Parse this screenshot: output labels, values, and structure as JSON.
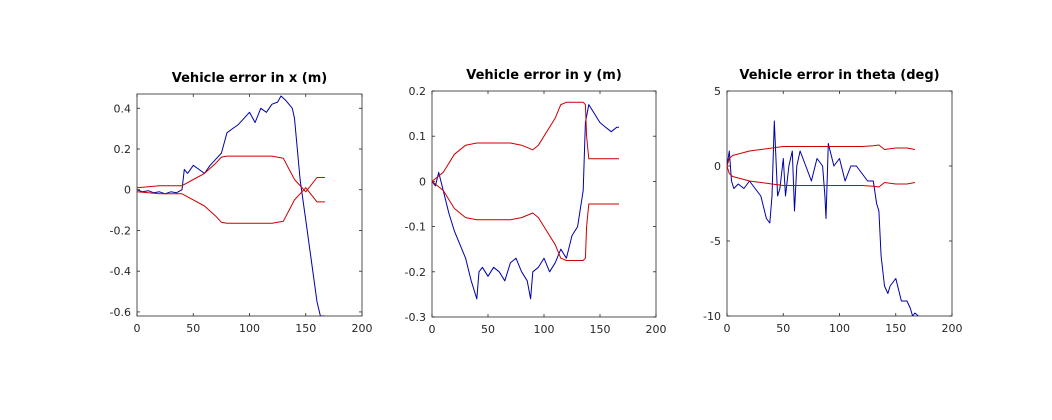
{
  "chart_data": [
    {
      "type": "line",
      "title": "Vehicle error in x (m)",
      "xlabel": "",
      "ylabel": "",
      "xlim": [
        0,
        200
      ],
      "ylim": [
        -0.62,
        0.47
      ],
      "xticks": [
        0,
        50,
        100,
        150,
        200
      ],
      "yticks": [
        -0.6,
        -0.4,
        -0.2,
        0,
        0.2,
        0.4
      ],
      "xtick_labels": [
        "0",
        "50",
        "100",
        "150",
        "200"
      ],
      "ytick_labels": [
        "-0.6",
        "-0.4",
        "-0.2",
        "0",
        "0.2",
        "0.4"
      ],
      "grid": false,
      "series": [
        {
          "color": "#0000aa",
          "x": [
            0,
            5,
            10,
            15,
            20,
            25,
            30,
            35,
            40,
            42,
            45,
            50,
            55,
            60,
            65,
            70,
            75,
            80,
            85,
            90,
            95,
            100,
            105,
            110,
            115,
            120,
            125,
            128,
            130,
            132,
            135,
            138,
            140,
            145,
            150,
            155,
            160,
            163,
            167
          ],
          "y": [
            0,
            -0.01,
            -0.005,
            -0.015,
            -0.01,
            -0.02,
            -0.01,
            -0.015,
            0,
            0.1,
            0.08,
            0.12,
            0.1,
            0.08,
            0.12,
            0.15,
            0.18,
            0.28,
            0.3,
            0.32,
            0.35,
            0.38,
            0.33,
            0.4,
            0.38,
            0.42,
            0.43,
            0.46,
            0.45,
            0.44,
            0.42,
            0.4,
            0.35,
            0.05,
            -0.15,
            -0.35,
            -0.55,
            -0.62,
            -0.62
          ]
        },
        {
          "color": "#cc0000",
          "x": [
            0,
            20,
            40,
            50,
            60,
            70,
            75,
            80,
            100,
            120,
            130,
            140,
            150,
            160,
            167
          ],
          "y": [
            0.01,
            0.02,
            0.02,
            0.05,
            0.08,
            0.13,
            0.16,
            0.165,
            0.165,
            0.165,
            0.155,
            0.05,
            -0.01,
            0.06,
            0.06
          ]
        },
        {
          "color": "#cc0000",
          "x": [
            0,
            20,
            40,
            50,
            60,
            70,
            75,
            80,
            100,
            120,
            130,
            140,
            150,
            160,
            167
          ],
          "y": [
            -0.01,
            -0.02,
            -0.02,
            -0.05,
            -0.08,
            -0.13,
            -0.16,
            -0.165,
            -0.165,
            -0.165,
            -0.155,
            -0.05,
            0.01,
            -0.06,
            -0.06
          ]
        }
      ]
    },
    {
      "type": "line",
      "title": "Vehicle error in y (m)",
      "xlabel": "",
      "ylabel": "",
      "xlim": [
        0,
        200
      ],
      "ylim": [
        -0.3,
        0.2
      ],
      "xticks": [
        0,
        50,
        100,
        150,
        200
      ],
      "yticks": [
        -0.3,
        -0.2,
        -0.1,
        0,
        0.1,
        0.2
      ],
      "xtick_labels": [
        "0",
        "50",
        "100",
        "150",
        "200"
      ],
      "ytick_labels": [
        "-0.3",
        "-0.2",
        "-0.1",
        "0",
        "0.1",
        "0.2"
      ],
      "grid": false,
      "series": [
        {
          "color": "#0000aa",
          "x": [
            0,
            3,
            6,
            10,
            15,
            20,
            25,
            30,
            35,
            40,
            42,
            45,
            50,
            55,
            60,
            65,
            70,
            75,
            80,
            85,
            88,
            90,
            95,
            100,
            105,
            110,
            115,
            120,
            125,
            130,
            135,
            137,
            140,
            145,
            150,
            155,
            160,
            165,
            167
          ],
          "y": [
            0,
            -0.01,
            0.02,
            -0.02,
            -0.07,
            -0.11,
            -0.14,
            -0.17,
            -0.22,
            -0.26,
            -0.2,
            -0.19,
            -0.21,
            -0.19,
            -0.2,
            -0.22,
            -0.18,
            -0.17,
            -0.2,
            -0.22,
            -0.26,
            -0.2,
            -0.19,
            -0.17,
            -0.2,
            -0.18,
            -0.15,
            -0.17,
            -0.12,
            -0.1,
            -0.02,
            0.13,
            0.17,
            0.15,
            0.13,
            0.12,
            0.11,
            0.12,
            0.12
          ]
        },
        {
          "color": "#cc0000",
          "x": [
            0,
            5,
            10,
            20,
            30,
            40,
            50,
            60,
            70,
            80,
            90,
            95,
            100,
            110,
            115,
            120,
            130,
            135,
            137,
            138,
            140,
            150,
            167
          ],
          "y": [
            0,
            0.01,
            0.02,
            0.06,
            0.08,
            0.085,
            0.085,
            0.085,
            0.085,
            0.08,
            0.07,
            0.08,
            0.1,
            0.14,
            0.17,
            0.175,
            0.175,
            0.175,
            0.17,
            0.1,
            0.05,
            0.05,
            0.05
          ]
        },
        {
          "color": "#cc0000",
          "x": [
            0,
            5,
            10,
            20,
            30,
            40,
            50,
            60,
            70,
            80,
            90,
            95,
            100,
            110,
            115,
            120,
            130,
            135,
            137,
            138,
            140,
            150,
            167
          ],
          "y": [
            0,
            -0.01,
            -0.02,
            -0.06,
            -0.08,
            -0.085,
            -0.085,
            -0.085,
            -0.085,
            -0.08,
            -0.07,
            -0.08,
            -0.1,
            -0.14,
            -0.17,
            -0.175,
            -0.175,
            -0.175,
            -0.17,
            -0.1,
            -0.05,
            -0.05,
            -0.05
          ]
        }
      ]
    },
    {
      "type": "line",
      "title": "Vehicle error in theta (deg)",
      "xlabel": "",
      "ylabel": "",
      "xlim": [
        0,
        200
      ],
      "ylim": [
        -10,
        5
      ],
      "xticks": [
        0,
        50,
        100,
        150,
        200
      ],
      "yticks": [
        -10,
        -5,
        0,
        5
      ],
      "xtick_labels": [
        "0",
        "50",
        "100",
        "150",
        "200"
      ],
      "ytick_labels": [
        "-10",
        "-5",
        "0",
        "5"
      ],
      "grid": false,
      "series": [
        {
          "color": "#0000aa",
          "x": [
            0,
            2,
            4,
            6,
            10,
            15,
            20,
            25,
            30,
            35,
            38,
            40,
            42,
            45,
            47,
            50,
            52,
            55,
            58,
            60,
            62,
            65,
            70,
            75,
            80,
            85,
            87,
            88,
            90,
            95,
            100,
            105,
            110,
            115,
            120,
            125,
            130,
            133,
            135,
            137,
            140,
            143,
            145,
            150,
            155,
            160,
            163,
            165,
            167,
            170
          ],
          "y": [
            0,
            1,
            -1,
            -1.5,
            -1.2,
            -1.5,
            -1,
            -1.5,
            -2,
            -3.5,
            -3.8,
            -2,
            3,
            -2,
            -1.5,
            0.5,
            -2,
            0,
            1,
            -3,
            0,
            1,
            0,
            -1,
            0.5,
            0,
            -2,
            -3.5,
            1.5,
            0,
            0.5,
            -1,
            0,
            0,
            -0.5,
            -1,
            -1,
            -2.5,
            -3,
            -6,
            -8,
            -8.5,
            -8,
            -7.5,
            -9,
            -9,
            -9.5,
            -10,
            -9.8,
            -10
          ]
        },
        {
          "color": "#cc0000",
          "x": [
            0,
            2,
            5,
            10,
            20,
            30,
            40,
            50,
            60,
            70,
            80,
            90,
            100,
            110,
            120,
            130,
            135,
            140,
            150,
            160,
            167
          ],
          "y": [
            0,
            0.5,
            0.7,
            0.8,
            1,
            1.1,
            1.2,
            1.3,
            1.3,
            1.3,
            1.3,
            1.3,
            1.3,
            1.3,
            1.3,
            1.35,
            1.4,
            1.1,
            1.2,
            1.2,
            1.1
          ]
        },
        {
          "color": "#cc0000",
          "x": [
            0,
            2,
            5,
            10,
            20,
            30,
            40,
            50,
            60,
            70,
            80,
            90,
            100,
            110,
            120,
            130,
            135,
            140,
            150,
            160,
            167
          ],
          "y": [
            0,
            -0.5,
            -0.7,
            -0.8,
            -1,
            -1.1,
            -1.2,
            -1.3,
            -1.3,
            -1.3,
            -1.3,
            -1.3,
            -1.3,
            -1.3,
            -1.3,
            -1.35,
            -1.4,
            -1.1,
            -1.2,
            -1.2,
            -1.1
          ]
        }
      ]
    }
  ]
}
